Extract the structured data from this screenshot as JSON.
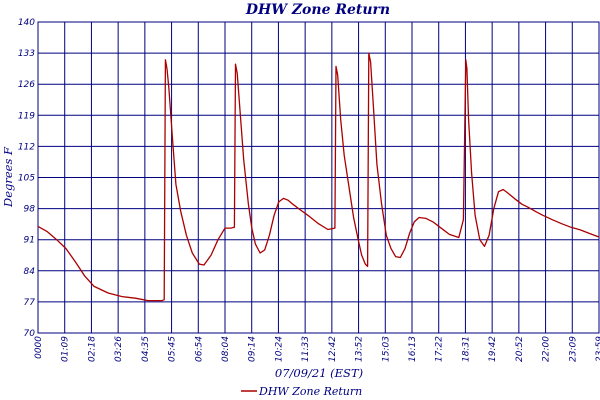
{
  "chart_data": {
    "type": "line",
    "title": "DHW Zone Return",
    "xlabel": "07/09/21 (EST)",
    "ylabel": "Degrees F",
    "ylim": [
      70,
      140
    ],
    "yticks": [
      70,
      77,
      84,
      91,
      98,
      105,
      112,
      119,
      126,
      133,
      140
    ],
    "xlim": [
      0,
      24
    ],
    "xtick_labels": [
      "0000",
      "01:09",
      "02:18",
      "03:26",
      "04:35",
      "05:45",
      "06:54",
      "08:04",
      "09:14",
      "10:24",
      "11:33",
      "12:42",
      "13:52",
      "15:03",
      "16:13",
      "17:22",
      "18:31",
      "19:42",
      "20:52",
      "22:00",
      "23:09",
      "23:59"
    ],
    "grid": true,
    "legend_position": "bottom-center",
    "colors": {
      "series": "#aa0000",
      "grid": "#000080",
      "text": "#000080"
    },
    "series": [
      {
        "name": "DHW Zone Return",
        "x": [
          0.0,
          0.4,
          0.8,
          1.2,
          1.6,
          2.0,
          2.4,
          3.0,
          3.6,
          4.2,
          4.7,
          5.3,
          5.4,
          5.45,
          5.52,
          5.6,
          5.75,
          5.9,
          6.1,
          6.35,
          6.6,
          6.9,
          7.1,
          7.4,
          7.7,
          8.0,
          8.25,
          8.4,
          8.45,
          8.52,
          8.65,
          8.8,
          9.0,
          9.15,
          9.3,
          9.5,
          9.7,
          9.9,
          10.1,
          10.3,
          10.5,
          10.7,
          10.9,
          11.2,
          11.6,
          12.0,
          12.4,
          12.7,
          12.75,
          12.82,
          12.95,
          13.1,
          13.3,
          13.5,
          13.7,
          13.85,
          14.0,
          14.1,
          14.15,
          14.23,
          14.35,
          14.5,
          14.7,
          14.9,
          15.1,
          15.3,
          15.5,
          15.7,
          15.9,
          16.1,
          16.3,
          16.6,
          16.9,
          17.2,
          17.6,
          18.0,
          18.2,
          18.3,
          18.35,
          18.42,
          18.55,
          18.7,
          18.9,
          19.1,
          19.3,
          19.5,
          19.7,
          19.9,
          20.1,
          20.4,
          20.7,
          21.0,
          21.3,
          21.6,
          22.0,
          22.4,
          22.8,
          23.2,
          23.6,
          24.0
        ],
        "y": [
          94.0,
          92.8,
          91.0,
          89.0,
          86.0,
          82.8,
          80.5,
          79.0,
          78.2,
          77.8,
          77.3,
          77.3,
          77.5,
          131.5,
          129.5,
          125.0,
          114.0,
          103.5,
          97.5,
          92.0,
          88.0,
          85.5,
          85.3,
          87.5,
          91.0,
          93.6,
          93.6,
          93.8,
          130.5,
          128.5,
          119.5,
          109.0,
          99.0,
          93.5,
          90.0,
          88.0,
          88.7,
          92.0,
          96.5,
          99.5,
          100.3,
          99.9,
          99.0,
          97.8,
          96.3,
          94.6,
          93.3,
          93.6,
          130.0,
          128.0,
          118.0,
          110.0,
          103.0,
          96.0,
          91.0,
          87.5,
          85.5,
          85.0,
          133.0,
          131.0,
          121.0,
          108.0,
          99.0,
          92.0,
          89.0,
          87.2,
          87.0,
          89.0,
          92.5,
          95.0,
          96.0,
          95.8,
          95.0,
          93.8,
          92.2,
          91.5,
          95.5,
          131.5,
          129.5,
          118.0,
          106.0,
          96.5,
          91.0,
          89.5,
          92.0,
          98.0,
          101.8,
          102.3,
          101.5,
          100.2,
          99.0,
          98.2,
          97.3,
          96.5,
          95.5,
          94.6,
          93.8,
          93.2,
          92.4,
          91.6
        ]
      }
    ]
  }
}
